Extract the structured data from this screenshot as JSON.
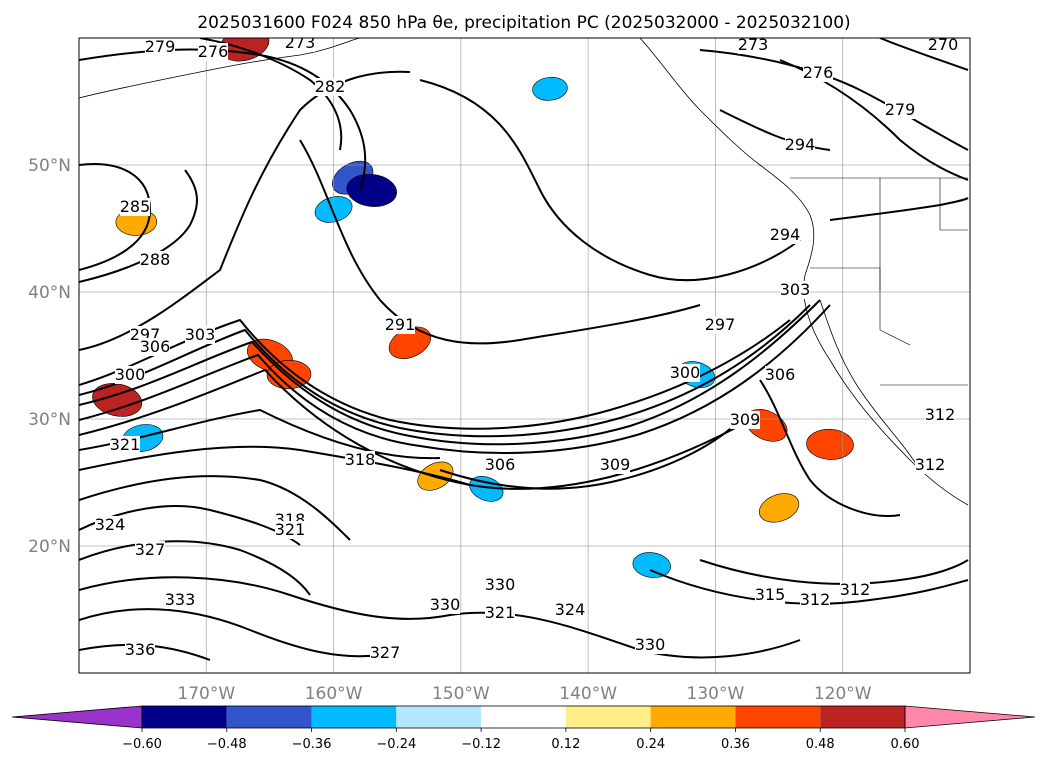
{
  "title": "2025031600 F024 850 hPa θe, precipitation PC (2025032000 - 2025032100)",
  "lat_labels": [
    "50°N",
    "40°N",
    "30°N",
    "20°N"
  ],
  "lon_labels": [
    "170°W",
    "160°W",
    "150°W",
    "140°W",
    "130°W",
    "120°W"
  ],
  "colorbar": {
    "ticks": [
      "−0.60",
      "−0.48",
      "−0.36",
      "−0.24",
      "−0.12",
      "0.12",
      "0.24",
      "0.36",
      "0.48",
      "0.60"
    ],
    "under_color": "#9933cc",
    "over_color": "#ff88aa",
    "colors": [
      "#000088",
      "#3355cc",
      "#00bbff",
      "#b3e6ff",
      "#ffffff",
      "#ffee88",
      "#ffaa00",
      "#ff4400",
      "#bb2222"
    ]
  },
  "contour_labels": [
    "279",
    "276",
    "273",
    "273",
    "270",
    "276",
    "279",
    "282",
    "285",
    "288",
    "291",
    "294",
    "294",
    "297",
    "297",
    "300",
    "300",
    "303",
    "303",
    "306",
    "306",
    "306",
    "309",
    "309",
    "312",
    "312",
    "312",
    "312",
    "315",
    "318",
    "318",
    "321",
    "321",
    "321",
    "324",
    "324",
    "327",
    "327",
    "330",
    "330",
    "330",
    "333",
    "336"
  ],
  "shading": [
    {
      "lon": -158.5,
      "lat": 49.0,
      "val": -0.4
    },
    {
      "lon": -157.0,
      "lat": 48.0,
      "val": -0.5
    },
    {
      "lon": -160.0,
      "lat": 46.5,
      "val": -0.3
    },
    {
      "lon": -165.0,
      "lat": 35.0,
      "val": 0.45
    },
    {
      "lon": -163.5,
      "lat": 33.5,
      "val": 0.4
    },
    {
      "lon": -154.0,
      "lat": 36.0,
      "val": 0.4
    },
    {
      "lon": -177.0,
      "lat": 31.5,
      "val": 0.5
    },
    {
      "lon": -175.0,
      "lat": 28.5,
      "val": -0.35
    },
    {
      "lon": -126.0,
      "lat": 29.5,
      "val": 0.4
    },
    {
      "lon": -121.0,
      "lat": 28.0,
      "val": 0.45
    },
    {
      "lon": -125.0,
      "lat": 23.0,
      "val": 0.35
    },
    {
      "lon": -131.5,
      "lat": 33.5,
      "val": -0.3
    },
    {
      "lon": -143.0,
      "lat": 56.0,
      "val": -0.25
    },
    {
      "lon": -152.0,
      "lat": 25.5,
      "val": 0.3
    },
    {
      "lon": -135.0,
      "lat": 18.5,
      "val": -0.3
    },
    {
      "lon": -167.0,
      "lat": 59.5,
      "val": 0.5
    },
    {
      "lon": -148.0,
      "lat": 24.5,
      "val": -0.25
    },
    {
      "lon": -175.5,
      "lat": 45.5,
      "val": 0.35
    }
  ]
}
